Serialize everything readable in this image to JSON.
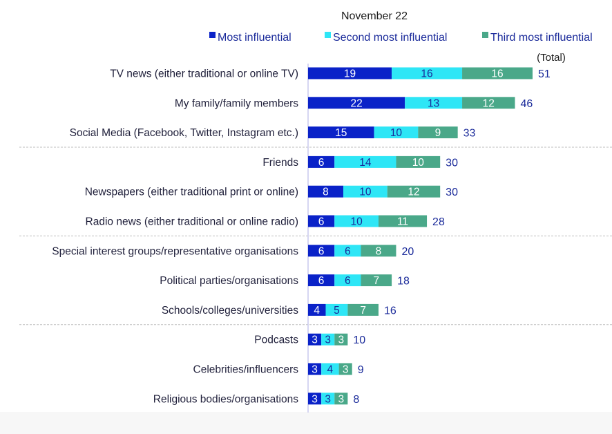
{
  "chart_data": {
    "type": "bar",
    "orientation": "horizontal",
    "stacked": true,
    "title": "November  22",
    "total_header": "(Total)",
    "legend_position": "top",
    "categories": [
      "TV news (either traditional or online TV)",
      "My family/family members",
      "Social Media (Facebook, Twitter, Instagram etc.)",
      "Friends",
      "Newspapers (either traditional print or online)",
      "Radio news (either traditional or online radio)",
      "Special interest groups/representative organisations",
      "Political parties/organisations",
      "Schools/colleges/universities",
      "Podcasts",
      "Celebrities/influencers",
      "Religious bodies/organisations"
    ],
    "series": [
      {
        "name": "Most influential",
        "color": "#0a22c8",
        "label_color": "#ffffff",
        "values": [
          19,
          22,
          15,
          6,
          8,
          6,
          6,
          6,
          4,
          3,
          3,
          3
        ]
      },
      {
        "name": "Second most influential",
        "color": "#2ee6f6",
        "label_color": "#1a2a9a",
        "values": [
          16,
          13,
          10,
          14,
          10,
          10,
          6,
          6,
          5,
          3,
          4,
          3
        ]
      },
      {
        "name": "Third most influential",
        "color": "#4aa889",
        "label_color": "#ffffff",
        "values": [
          16,
          12,
          9,
          10,
          12,
          11,
          8,
          7,
          7,
          3,
          3,
          3
        ]
      }
    ],
    "totals": [
      51,
      46,
      33,
      30,
      30,
      28,
      20,
      18,
      16,
      10,
      9,
      8
    ],
    "group_separators_after": [
      2,
      5,
      8
    ],
    "xlabel": "",
    "ylabel": "",
    "xlim": [
      0,
      51
    ],
    "grid": false
  }
}
